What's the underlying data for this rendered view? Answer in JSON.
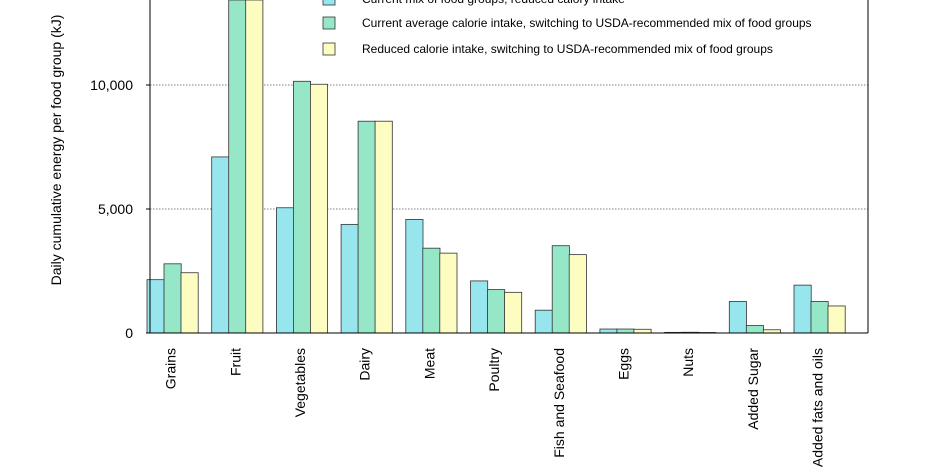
{
  "chart_data": {
    "type": "bar",
    "title": "",
    "xlabel": "",
    "ylabel": "Daily cumulative energy per food group (kJ)",
    "ylim": [
      0,
      14000
    ],
    "yticks": [
      0,
      5000,
      10000
    ],
    "ytick_labels": [
      "0",
      "5,000",
      "10,000"
    ],
    "grid": true,
    "legend_position": "top-right",
    "categories": [
      "Grains",
      "Fruit",
      "Vegetables",
      "Dairy",
      "Meat",
      "Poultry",
      "Fish and Seafood",
      "Eggs",
      "Nuts",
      "Added Sugar",
      "Added fats and oils"
    ],
    "series": [
      {
        "name": "Current mix of food groups, reduced calory intake",
        "color": "#97e6ee",
        "values": [
          2150,
          7100,
          5050,
          4380,
          4580,
          2100,
          920,
          160,
          25,
          1270,
          1930
        ]
      },
      {
        "name": "Current average calorie intake, switching to USDA-recommended mix of food groups",
        "color": "#96e6c8",
        "values": [
          2790,
          14000,
          10150,
          8540,
          3420,
          1750,
          3520,
          160,
          30,
          300,
          1270
        ]
      },
      {
        "name": "Reduced calorie intake, switching to USDA-recommended mix of food groups",
        "color": "#fdfdc2",
        "values": [
          2430,
          14000,
          10030,
          8540,
          3220,
          1640,
          3160,
          150,
          20,
          130,
          1090
        ]
      }
    ]
  }
}
